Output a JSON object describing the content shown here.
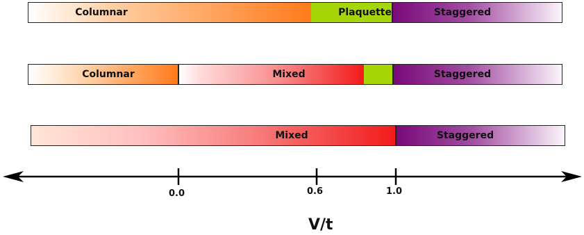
{
  "rows": [
    {
      "segments": [
        {
          "label": "Columnar",
          "color": "#ff7a1a"
        },
        {
          "label": "Plaquette",
          "color": "#a6d608"
        },
        {
          "label": "Staggered",
          "color": "#7a0a7a"
        }
      ]
    },
    {
      "segments": [
        {
          "label": "Columnar",
          "color": "#ff7a1a"
        },
        {
          "label": "Mixed",
          "color": "#f31b1b"
        },
        {
          "label": "",
          "color": "#a6d608"
        },
        {
          "label": "Staggered",
          "color": "#7a0a7a"
        }
      ]
    },
    {
      "segments": [
        {
          "label": "Mixed",
          "color": "#f31b1b"
        },
        {
          "label": "Staggered",
          "color": "#7a0a7a"
        }
      ]
    }
  ],
  "axis": {
    "title": "V/t",
    "ticks": [
      "0.0",
      "0.6",
      "1.0"
    ]
  }
}
